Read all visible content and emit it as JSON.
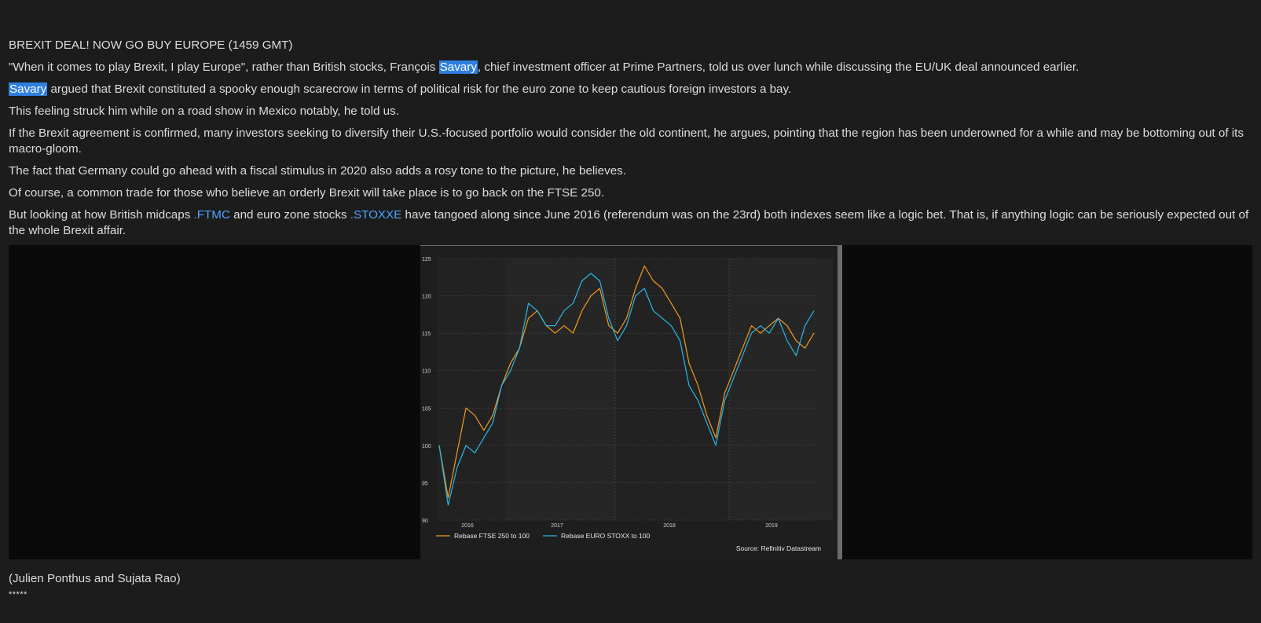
{
  "article": {
    "headline": "BREXIT DEAL! NOW GO BUY EUROPE (1459 GMT)",
    "p1_before": "\"When it comes to play Brexit, I play Europe\", rather than British stocks, François ",
    "p1_highlight": "Savary",
    "p1_after": ", chief investment officer at Prime Partners, told us over lunch while discussing the EU/UK deal announced earlier.",
    "p2_highlight": "Savary",
    "p2_after": " argued that Brexit constituted a spooky enough scarecrow in terms of political risk for the euro zone to keep cautious foreign investors a bay.",
    "p3": "This feeling struck him while on a road show in Mexico notably, he told us.",
    "p4": "If the Brexit agreement is confirmed, many investors seeking to diversify their U.S.-focused portfolio would consider the old continent, he argues, pointing that the region has been underowned for a while and may be bottoming out of its macro-gloom.",
    "p5": "The fact that Germany could go ahead with a fiscal stimulus in 2020 also adds a rosy tone to the picture, he believes.",
    "p6": "Of course, a common trade for those who believe an orderly Brexit will take place is to go back on the FTSE 250.",
    "p7_a": "But looking at how British midcaps ",
    "p7_ric1": ".FTMC",
    "p7_b": " and euro zone stocks ",
    "p7_ric2": ".STOXXE",
    "p7_c": " have tangoed along since June 2016 (referendum was on the 23rd) both indexes seem like a logic bet. That is, if anything logic can be seriously expected out of the whole Brexit affair.",
    "byline": "(Julien Ponthus and Sujata Rao)",
    "separator": "*****"
  },
  "colors": {
    "ftse": "#f39a1e",
    "stoxx": "#29b7e6",
    "highlight": "#2f7fe0",
    "link": "#4ea6ff"
  },
  "chart_data": {
    "type": "line",
    "ylim": [
      90,
      125
    ],
    "yticks": [
      "125",
      "120",
      "115",
      "110",
      "105",
      "100",
      "95",
      "90"
    ],
    "xticks": [
      "2016",
      "2017",
      "2018",
      "2019"
    ],
    "source": "Source: Refinitiv Datastream",
    "x": [
      "2016-06",
      "2016-07",
      "2016-08",
      "2016-09",
      "2016-10",
      "2016-11",
      "2016-12",
      "2017-01",
      "2017-02",
      "2017-03",
      "2017-04",
      "2017-05",
      "2017-06",
      "2017-07",
      "2017-08",
      "2017-09",
      "2017-10",
      "2017-11",
      "2017-12",
      "2018-01",
      "2018-02",
      "2018-03",
      "2018-04",
      "2018-05",
      "2018-06",
      "2018-07",
      "2018-08",
      "2018-09",
      "2018-10",
      "2018-11",
      "2018-12",
      "2019-01",
      "2019-02",
      "2019-03",
      "2019-04",
      "2019-05",
      "2019-06",
      "2019-07",
      "2019-08",
      "2019-09",
      "2019-10",
      "2019-11",
      "2019-12"
    ],
    "series": [
      {
        "name": "Rebase FTSE 250 to 100",
        "values": [
          100,
          93,
          99,
          105,
          104,
          102,
          104,
          108,
          111,
          113,
          117,
          118,
          116,
          115,
          116,
          115,
          118,
          120,
          121,
          116,
          115,
          117,
          121,
          124,
          122,
          121,
          119,
          117,
          111,
          108,
          104,
          101,
          107,
          110,
          113,
          116,
          115,
          116,
          117,
          116,
          114,
          113,
          115
        ]
      },
      {
        "name": "Rebase EURO STOXX to 100",
        "values": [
          100,
          92,
          97,
          100,
          99,
          101,
          103,
          108,
          110,
          113,
          119,
          118,
          116,
          116,
          118,
          119,
          122,
          123,
          122,
          117,
          114,
          116,
          120,
          121,
          118,
          117,
          116,
          114,
          108,
          106,
          103,
          100,
          106,
          109,
          112,
          115,
          116,
          115,
          117,
          114,
          112,
          116,
          118
        ]
      }
    ]
  }
}
